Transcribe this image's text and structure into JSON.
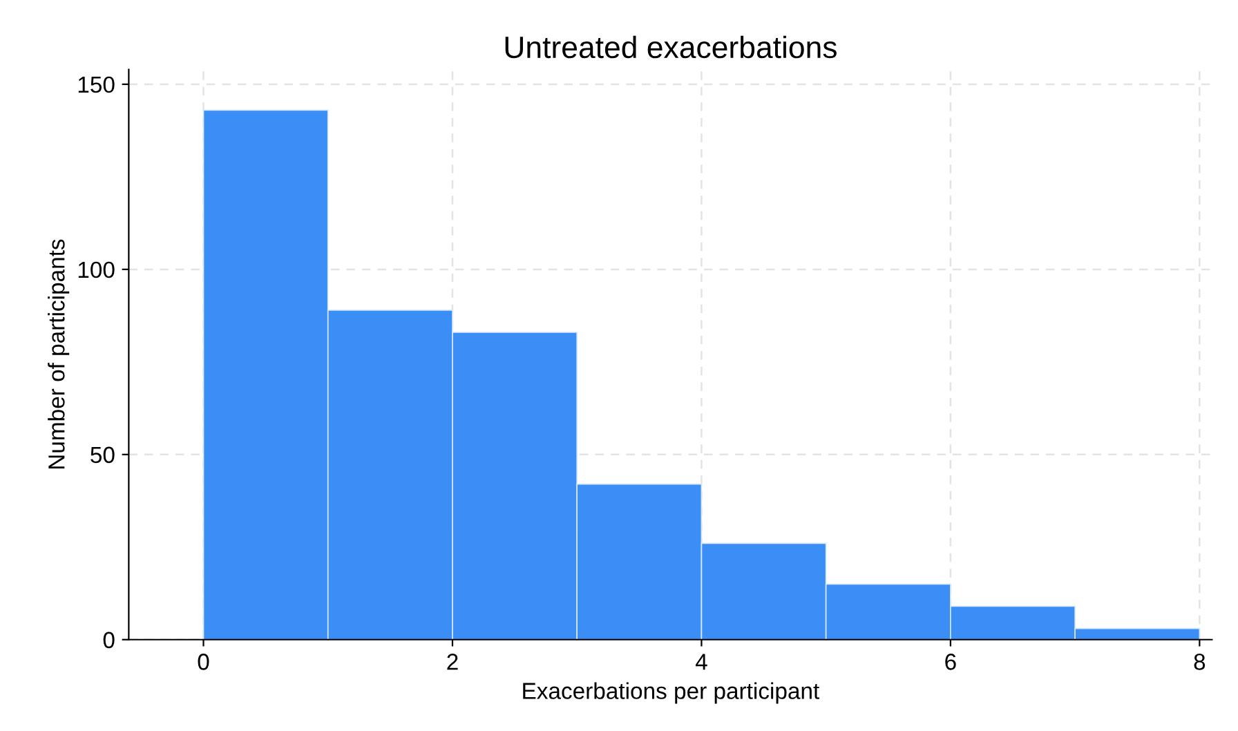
{
  "chart_data": {
    "type": "histogram",
    "title": "Untreated exacerbations",
    "xlabel": "Exacerbations per participant",
    "ylabel": "Number of participants",
    "bins": [
      0,
      1,
      2,
      3,
      4,
      5,
      6,
      7,
      8
    ],
    "values": [
      143,
      89,
      83,
      42,
      26,
      15,
      9,
      3
    ],
    "color": "#3a8ef6",
    "xlim": [
      -0.6,
      8.1
    ],
    "ylim": [
      0,
      154
    ],
    "xticks": [
      0,
      2,
      4,
      6,
      8
    ],
    "yticks": [
      0,
      50,
      100,
      150
    ],
    "grid": true,
    "legend": false
  }
}
